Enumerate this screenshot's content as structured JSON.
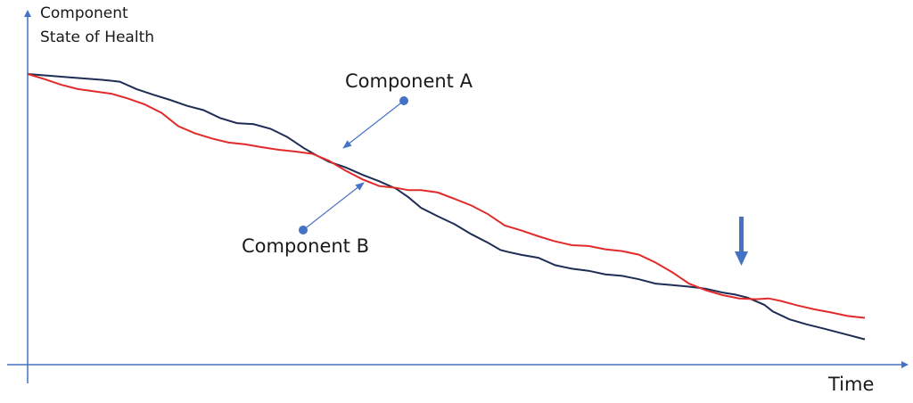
{
  "chart_data": {
    "type": "line",
    "y_axis_label_lines": [
      "Component",
      "State of Health"
    ],
    "xlabel": "Time",
    "grid": false,
    "legend": "none",
    "x_ticks": [],
    "y_ticks": [],
    "x_range": [
      0,
      100
    ],
    "y_range": [
      0,
      100
    ],
    "series": [
      {
        "name": "Component A",
        "color": "#1f2d55",
        "x": [
          0,
          5,
          9,
          11,
          13,
          15,
          17,
          19,
          21,
          23,
          25,
          27,
          29,
          31,
          33,
          34.5,
          36,
          38,
          40,
          42,
          44,
          45.5,
          47,
          49,
          51,
          53,
          55,
          56.5,
          57.5,
          59,
          61,
          63,
          65,
          67,
          69,
          71,
          73,
          75,
          77,
          79,
          81,
          83,
          84.5,
          86,
          88,
          89,
          91,
          93,
          95,
          97,
          100
        ],
        "y": [
          100,
          98.7,
          97.7,
          97,
          94.1,
          91.9,
          89.9,
          87.6,
          85.9,
          82.8,
          80.8,
          80.4,
          78.6,
          75.4,
          71,
          68.2,
          65.7,
          63.5,
          60.6,
          58.1,
          55.2,
          51.8,
          47.7,
          44.4,
          41.3,
          37.4,
          34,
          31.2,
          30.4,
          29.3,
          28.2,
          25.3,
          23.9,
          23.1,
          21.7,
          21.1,
          19.8,
          18.1,
          17.5,
          16.9,
          16.1,
          14.6,
          13.8,
          12.6,
          9.8,
          7.2,
          4.1,
          2.2,
          0.6,
          -1.1,
          -3.7
        ]
      },
      {
        "name": "Component B",
        "color": "#e32a2a",
        "x": [
          0,
          2,
          4,
          6,
          8,
          10,
          12,
          14,
          16,
          18,
          20,
          22,
          24,
          26,
          28,
          30,
          32,
          34,
          36,
          38,
          40,
          42,
          44,
          45.5,
          47,
          49,
          51,
          53,
          55,
          57,
          59,
          61,
          63,
          65,
          67,
          69,
          71,
          73,
          75,
          77,
          79,
          81,
          83,
          85,
          87,
          88.5,
          90,
          92,
          94,
          96,
          98,
          100
        ],
        "y": [
          100,
          98,
          95.8,
          94.1,
          93.2,
          92.3,
          90.4,
          88.1,
          84.8,
          79.6,
          76.8,
          74.8,
          73.2,
          72.5,
          71.4,
          70.4,
          69.7,
          68.8,
          66.1,
          62.2,
          58.8,
          56.2,
          55.5,
          54.6,
          54.6,
          53.7,
          51.2,
          48.6,
          45.2,
          40.8,
          38.8,
          36.6,
          34.6,
          33.1,
          32.8,
          31.5,
          30.8,
          29.4,
          26.3,
          22.5,
          18.1,
          15.5,
          13.6,
          12.3,
          12,
          12.3,
          11.3,
          9.5,
          8,
          6.8,
          5.4,
          4.7
        ]
      }
    ],
    "annotations": [
      {
        "text": "Component A",
        "series": "Component A",
        "x": 38.3,
        "y": 64
      },
      {
        "text": "Component B",
        "series": "Component B",
        "x": 40.1,
        "y": 58
      }
    ],
    "event_marker": {
      "type": "arrow-down",
      "x": 84.7
    }
  },
  "colors": {
    "axis": "#4472c4",
    "annotation_line": "#4472c4",
    "annotation_dot": "#4472c4",
    "event_arrow": "#4472c4",
    "text": "#1a1a1a"
  }
}
